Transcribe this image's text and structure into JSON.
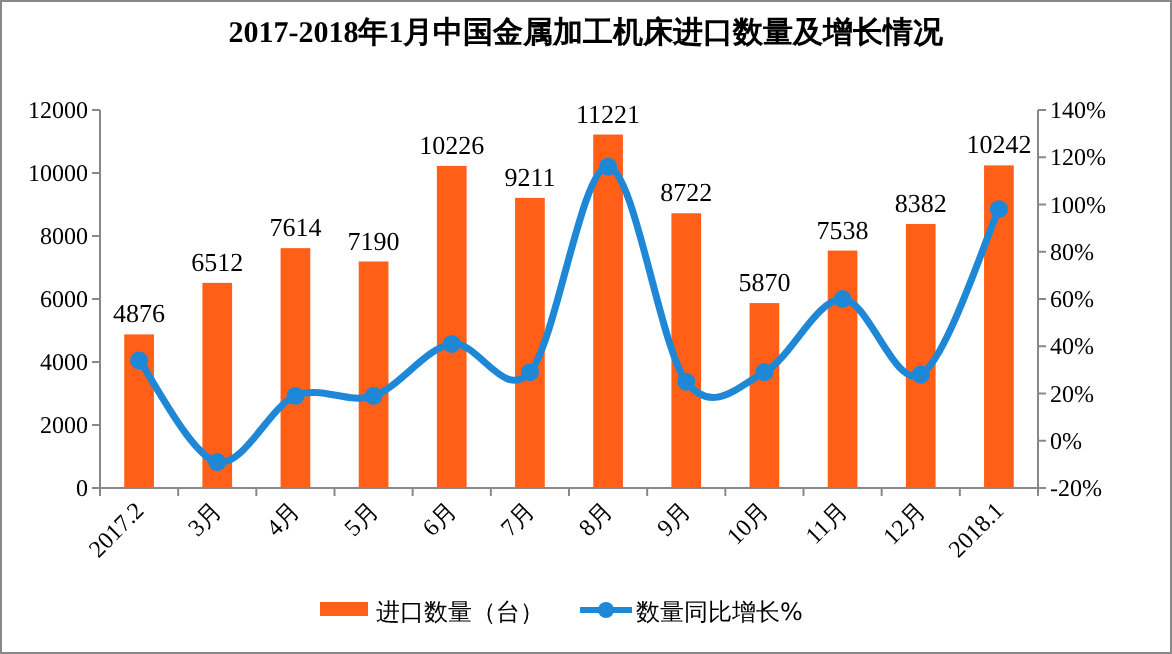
{
  "chart_data": {
    "type": "bar",
    "title": "2017-2018年1月中国金属加工机床进口数量及增长情况",
    "categories": [
      "2017.2",
      "3月",
      "4月",
      "5月",
      "6月",
      "7月",
      "8月",
      "9月",
      "10月",
      "11月",
      "12月",
      "2018.1"
    ],
    "series": [
      {
        "name": "进口数量（台）",
        "color": "#ff5f17",
        "values": [
          4876,
          6512,
          7614,
          7190,
          10226,
          9211,
          11221,
          8722,
          5870,
          7538,
          8382,
          10242
        ],
        "value_labels": [
          "4876",
          "6512",
          "7614",
          "7190",
          "10226",
          "9211",
          "11221",
          "8722",
          "5870",
          "7538",
          "8382",
          "10242"
        ]
      },
      {
        "name": "数量同比增长%",
        "type": "line",
        "axis": "y2",
        "color": "#1f88d6",
        "marker": "circle",
        "values": [
          34,
          -9,
          19,
          19,
          41,
          29,
          116,
          25,
          29,
          60,
          28,
          98
        ]
      }
    ],
    "ylim": [
      0,
      12000
    ],
    "yticks": [
      0,
      2000,
      4000,
      6000,
      8000,
      10000,
      12000
    ],
    "y2lim": [
      -20,
      140
    ],
    "y2ticks": [
      {
        "value": -20,
        "label": "-20%"
      },
      {
        "value": 0,
        "label": "0%"
      },
      {
        "value": 20,
        "label": "20%"
      },
      {
        "value": 40,
        "label": "40%"
      },
      {
        "value": 60,
        "label": "60%"
      },
      {
        "value": 80,
        "label": "80%"
      },
      {
        "value": 100,
        "label": "100%"
      },
      {
        "value": 120,
        "label": "120%"
      },
      {
        "value": 140,
        "label": "140%"
      }
    ],
    "legend": "bottom",
    "grid": false
  }
}
